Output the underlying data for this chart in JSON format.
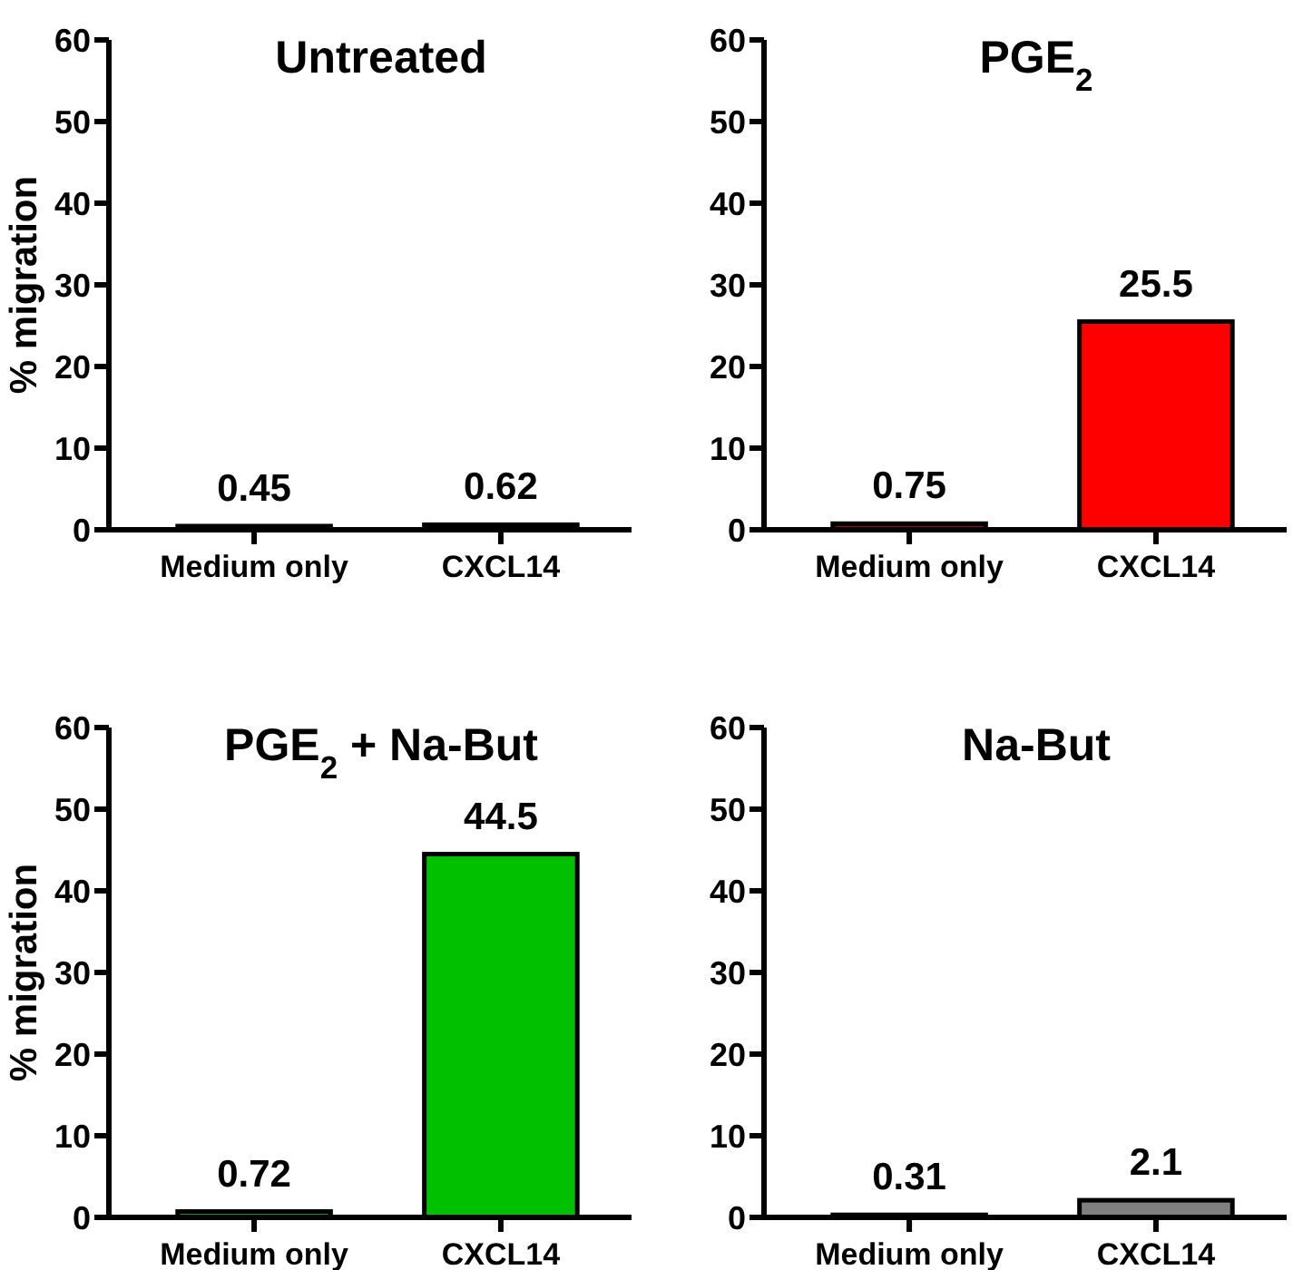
{
  "chart_data": [
    {
      "type": "bar",
      "title": "Untreated",
      "ylabel": "% migration",
      "categories": [
        "Medium only",
        "CXCL14"
      ],
      "values": [
        0.45,
        0.62
      ],
      "colors": [
        "#111111",
        "#111111"
      ],
      "ylim": [
        0,
        60
      ],
      "yticks": [
        0,
        10,
        20,
        30,
        40,
        50,
        60
      ],
      "data_labels": true
    },
    {
      "type": "bar",
      "title": "PGE$_{2}$",
      "categories": [
        "Medium only",
        "CXCL14"
      ],
      "values": [
        0.75,
        25.5
      ],
      "colors": [
        "#8b1010",
        "#ff0000"
      ],
      "ylim": [
        0,
        60
      ],
      "yticks": [
        0,
        10,
        20,
        30,
        40,
        50,
        60
      ],
      "data_labels": true
    },
    {
      "type": "bar",
      "title": "PGE$_{2}$ + Na-But",
      "ylabel": "% migration",
      "categories": [
        "Medium only",
        "CXCL14"
      ],
      "values": [
        0.72,
        44.5
      ],
      "colors": [
        "#1f8f1f",
        "#00c000"
      ],
      "ylim": [
        0,
        60
      ],
      "yticks": [
        0,
        10,
        20,
        30,
        40,
        50,
        60
      ],
      "data_labels": true
    },
    {
      "type": "bar",
      "title": "Na-But",
      "categories": [
        "Medium only",
        "CXCL14"
      ],
      "values": [
        0.31,
        2.1
      ],
      "colors": [
        "#444444",
        "#808080"
      ],
      "ylim": [
        0,
        60
      ],
      "yticks": [
        0,
        10,
        20,
        30,
        40,
        50,
        60
      ],
      "data_labels": true
    }
  ]
}
